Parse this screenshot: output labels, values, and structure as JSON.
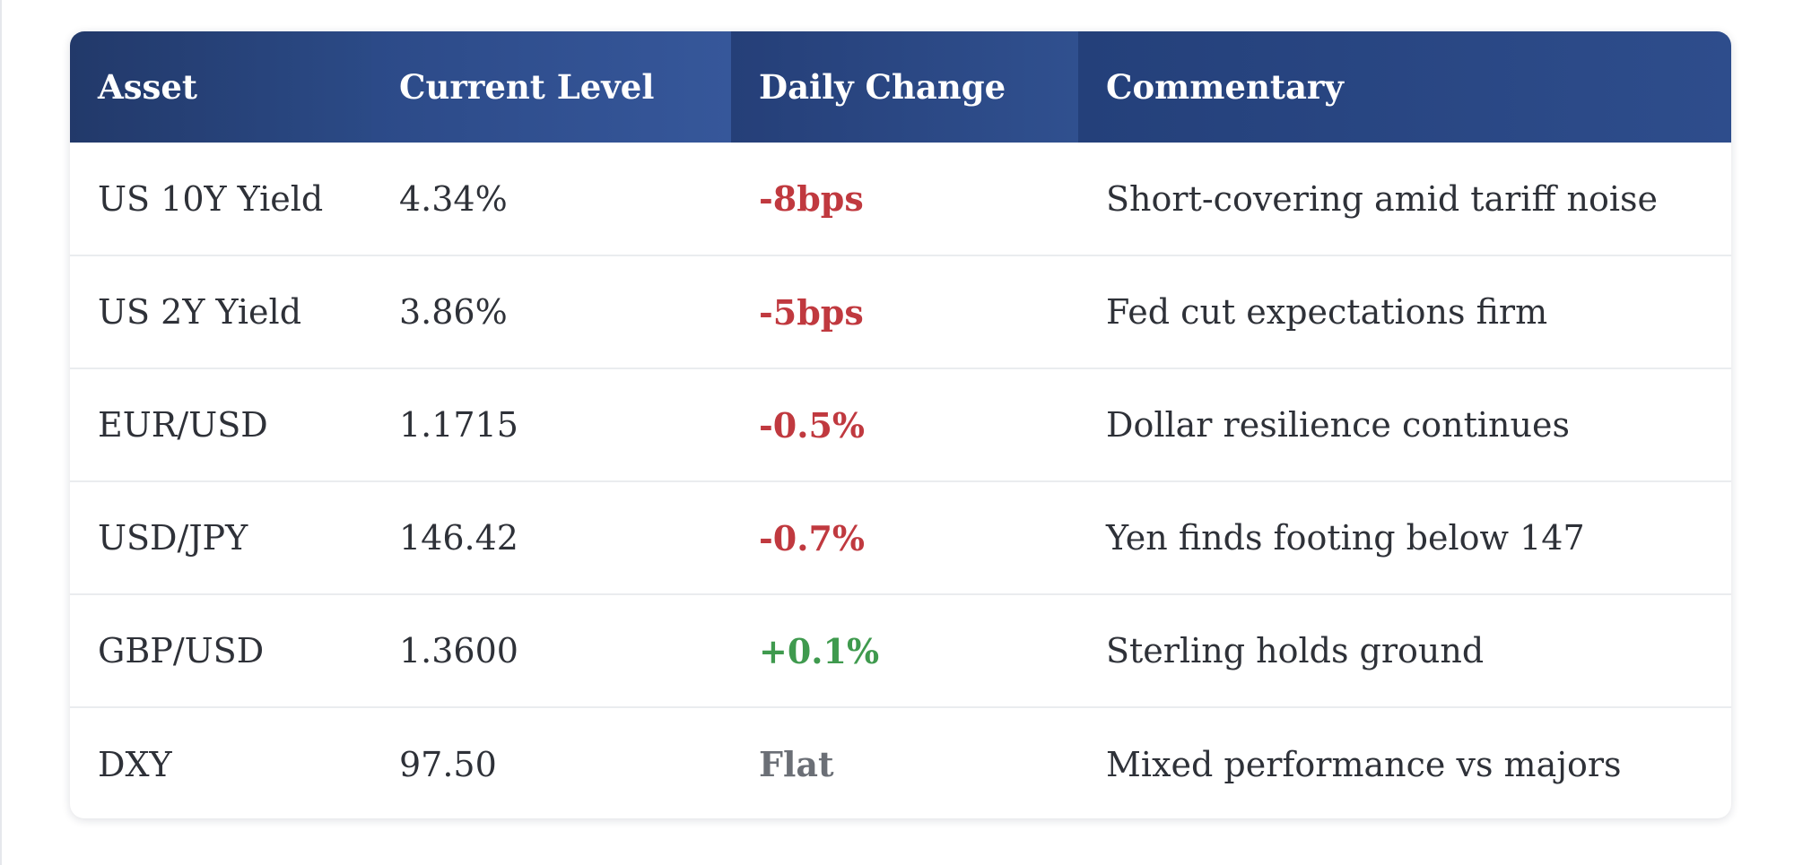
{
  "table": {
    "headers": [
      "Asset",
      "Current Level",
      "Daily Change",
      "Commentary"
    ],
    "rows": [
      {
        "asset": "US 10Y Yield",
        "level": "4.34%",
        "change": "-8bps",
        "direction": "negative",
        "commentary": "Short-covering amid tariff noise"
      },
      {
        "asset": "US 2Y Yield",
        "level": "3.86%",
        "change": "-5bps",
        "direction": "negative",
        "commentary": "Fed cut expectations firm"
      },
      {
        "asset": "EUR/USD",
        "level": "1.1715",
        "change": "-0.5%",
        "direction": "negative",
        "commentary": "Dollar resilience continues"
      },
      {
        "asset": "USD/JPY",
        "level": "146.42",
        "change": "-0.7%",
        "direction": "negative",
        "commentary": "Yen finds footing below 147"
      },
      {
        "asset": "GBP/USD",
        "level": "1.3600",
        "change": "+0.1%",
        "direction": "positive",
        "commentary": "Sterling holds ground"
      },
      {
        "asset": "DXY",
        "level": "97.50",
        "change": "Flat",
        "direction": "flat",
        "commentary": "Mixed performance vs majors"
      }
    ]
  },
  "colors": {
    "header_bg": "#2b4a86",
    "negative": "#c0393f",
    "positive": "#3f9a4e",
    "flat": "#6b6f76"
  }
}
